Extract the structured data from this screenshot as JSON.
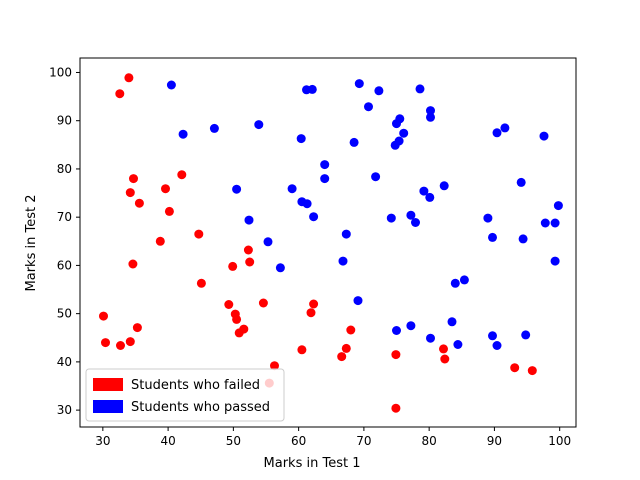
{
  "chart_data": {
    "type": "scatter",
    "title": "",
    "xlabel": "Marks in Test 1",
    "ylabel": "Marks in Test 2",
    "xlim": [
      26.5,
      102.5
    ],
    "ylim": [
      26.5,
      103
    ],
    "xticks": [
      30,
      40,
      50,
      60,
      70,
      80,
      90,
      100
    ],
    "yticks": [
      30,
      40,
      50,
      60,
      70,
      80,
      90,
      100
    ],
    "grid": false,
    "legend": "lower-left",
    "series": [
      {
        "name": "Students who failed",
        "color": "#ff0000",
        "points": [
          [
            34.0,
            98.9
          ],
          [
            32.6,
            95.6
          ],
          [
            34.7,
            78.0
          ],
          [
            34.2,
            75.1
          ],
          [
            35.6,
            72.9
          ],
          [
            42.1,
            78.8
          ],
          [
            39.6,
            75.9
          ],
          [
            40.2,
            71.2
          ],
          [
            38.8,
            65.0
          ],
          [
            34.6,
            60.3
          ],
          [
            30.1,
            49.5
          ],
          [
            30.4,
            44.0
          ],
          [
            32.7,
            43.4
          ],
          [
            34.2,
            44.2
          ],
          [
            35.3,
            47.1
          ],
          [
            44.7,
            66.5
          ],
          [
            45.1,
            56.3
          ],
          [
            49.9,
            59.8
          ],
          [
            52.3,
            63.2
          ],
          [
            52.5,
            60.7
          ],
          [
            49.3,
            51.9
          ],
          [
            50.3,
            49.9
          ],
          [
            50.5,
            48.8
          ],
          [
            51.6,
            46.8
          ],
          [
            50.9,
            46.0
          ],
          [
            54.6,
            52.2
          ],
          [
            56.3,
            39.2
          ],
          [
            55.5,
            35.6
          ],
          [
            60.5,
            42.5
          ],
          [
            61.9,
            50.2
          ],
          [
            62.3,
            52.0
          ],
          [
            66.6,
            41.1
          ],
          [
            67.3,
            42.8
          ],
          [
            68.0,
            46.6
          ],
          [
            74.9,
            41.5
          ],
          [
            74.9,
            30.4
          ],
          [
            82.2,
            42.7
          ],
          [
            82.4,
            40.6
          ],
          [
            93.1,
            38.8
          ],
          [
            95.8,
            38.2
          ]
        ]
      },
      {
        "name": "Students who passed",
        "color": "#0000ff",
        "points": [
          [
            40.5,
            97.4
          ],
          [
            42.3,
            87.2
          ],
          [
            47.1,
            88.4
          ],
          [
            53.9,
            89.2
          ],
          [
            60.4,
            86.3
          ],
          [
            61.2,
            96.4
          ],
          [
            62.1,
            96.5
          ],
          [
            69.3,
            97.7
          ],
          [
            70.7,
            92.9
          ],
          [
            72.3,
            96.2
          ],
          [
            78.6,
            96.6
          ],
          [
            80.2,
            92.1
          ],
          [
            80.2,
            90.7
          ],
          [
            75.5,
            90.4
          ],
          [
            75.0,
            89.4
          ],
          [
            76.1,
            87.4
          ],
          [
            75.4,
            85.8
          ],
          [
            74.8,
            84.9
          ],
          [
            68.5,
            85.5
          ],
          [
            91.6,
            88.5
          ],
          [
            90.4,
            87.5
          ],
          [
            97.6,
            86.8
          ],
          [
            64.0,
            80.9
          ],
          [
            64.0,
            78.0
          ],
          [
            71.8,
            78.4
          ],
          [
            50.5,
            75.8
          ],
          [
            59.0,
            75.9
          ],
          [
            60.5,
            73.2
          ],
          [
            61.3,
            72.8
          ],
          [
            62.3,
            70.1
          ],
          [
            52.4,
            69.4
          ],
          [
            79.2,
            75.4
          ],
          [
            80.1,
            74.1
          ],
          [
            82.3,
            76.5
          ],
          [
            74.2,
            69.8
          ],
          [
            77.2,
            70.4
          ],
          [
            77.9,
            68.9
          ],
          [
            94.1,
            77.2
          ],
          [
            89.0,
            69.8
          ],
          [
            97.8,
            68.8
          ],
          [
            99.3,
            68.8
          ],
          [
            99.8,
            72.4
          ],
          [
            89.7,
            65.8
          ],
          [
            94.4,
            65.5
          ],
          [
            55.3,
            64.9
          ],
          [
            57.2,
            59.5
          ],
          [
            67.3,
            66.5
          ],
          [
            66.8,
            60.9
          ],
          [
            99.3,
            60.9
          ],
          [
            84.0,
            56.3
          ],
          [
            85.4,
            57.0
          ],
          [
            69.1,
            52.7
          ],
          [
            83.5,
            48.3
          ],
          [
            77.2,
            47.5
          ],
          [
            75.0,
            46.5
          ],
          [
            80.2,
            44.9
          ],
          [
            84.4,
            43.6
          ],
          [
            89.7,
            45.4
          ],
          [
            90.4,
            43.4
          ],
          [
            94.8,
            45.6
          ]
        ]
      }
    ]
  }
}
